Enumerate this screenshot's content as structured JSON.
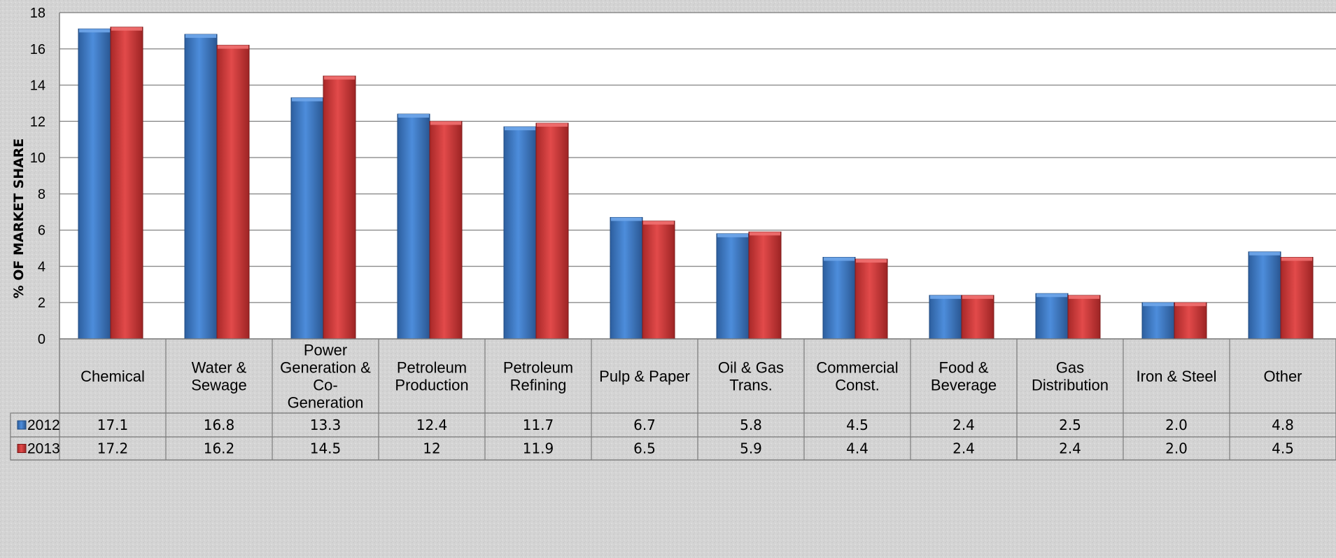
{
  "chart_data": {
    "type": "bar",
    "title": "",
    "xlabel": "",
    "ylabel": "% OF MARKET SHARE",
    "ylim": [
      0,
      18
    ],
    "yticks": [
      0,
      2,
      4,
      6,
      8,
      10,
      12,
      14,
      16,
      18
    ],
    "grid": true,
    "legend": "data-table",
    "categories": [
      [
        "Chemical"
      ],
      [
        "Water &",
        "Sewage"
      ],
      [
        "Power",
        "Generation &",
        "Co-",
        "Generation"
      ],
      [
        "Petroleum",
        "Production"
      ],
      [
        "Petroleum",
        "Refining"
      ],
      [
        "Pulp & Paper"
      ],
      [
        "Oil & Gas",
        "Trans."
      ],
      [
        "Commercial",
        "Const."
      ],
      [
        "Food &",
        "Beverage"
      ],
      [
        "Gas",
        "Distribution"
      ],
      [
        "Iron & Steel"
      ],
      [
        "Other"
      ]
    ],
    "series": [
      {
        "name": "2012",
        "color": "#3a78c8",
        "values": [
          17.1,
          16.8,
          13.3,
          12.4,
          11.7,
          6.7,
          5.8,
          4.5,
          2.4,
          2.5,
          2.0,
          4.8
        ],
        "labels": [
          "17.1",
          "16.8",
          "13.3",
          "12.4",
          "11.7",
          "6.7",
          "5.8",
          "4.5",
          "2.4",
          "2.5",
          "2.0",
          "4.8"
        ]
      },
      {
        "name": "2013",
        "color": "#d63a3a",
        "values": [
          17.2,
          16.2,
          14.5,
          12,
          11.9,
          6.5,
          5.9,
          4.4,
          2.4,
          2.4,
          2.0,
          4.5
        ],
        "labels": [
          "17.2",
          "16.2",
          "14.5",
          "12",
          "11.9",
          "6.5",
          "5.9",
          "4.4",
          "2.4",
          "2.4",
          "2.0",
          "4.5"
        ]
      }
    ]
  }
}
